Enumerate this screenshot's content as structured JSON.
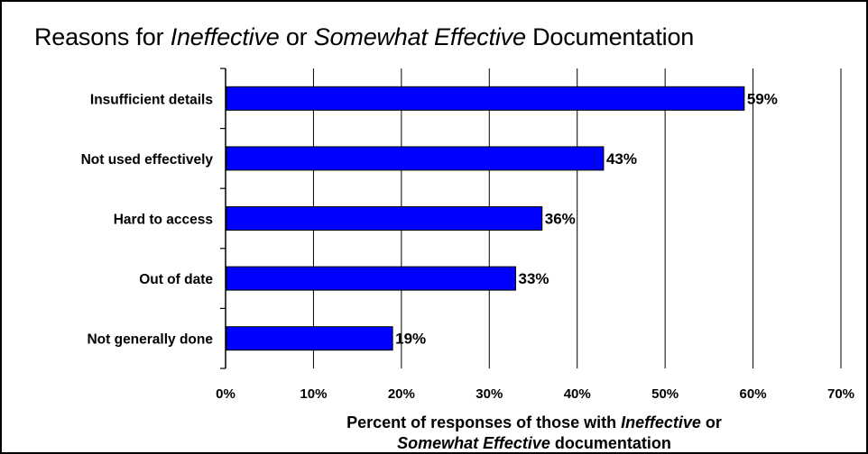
{
  "chart_data": {
    "type": "bar",
    "orientation": "horizontal",
    "title": {
      "parts": [
        "Reasons for ",
        "Ineffective",
        " or ",
        "Somewhat Effective",
        " Documentation"
      ]
    },
    "xlabel": {
      "line1": [
        "Percent of responses of those with ",
        "Ineffective",
        " or"
      ],
      "line2": [
        "Somewhat Effective",
        " documentation"
      ]
    },
    "categories": [
      "Insufficient details",
      "Not used effectively",
      "Hard to access",
      "Out of date",
      "Not generally done"
    ],
    "values": [
      59,
      43,
      36,
      33,
      19
    ],
    "data_labels": [
      "59%",
      "43%",
      "36%",
      "33%",
      "19%"
    ],
    "xlim": [
      0,
      70
    ],
    "xticks": [
      0,
      10,
      20,
      30,
      40,
      50,
      60,
      70
    ],
    "xtick_labels": [
      "0%",
      "10%",
      "20%",
      "30%",
      "40%",
      "50%",
      "60%",
      "70%"
    ],
    "grid": "vertical",
    "legend": "none",
    "colors": {
      "bar": "#0000ff",
      "bar_edge": "#000000",
      "grid": "#000000",
      "text": "#000000"
    }
  }
}
